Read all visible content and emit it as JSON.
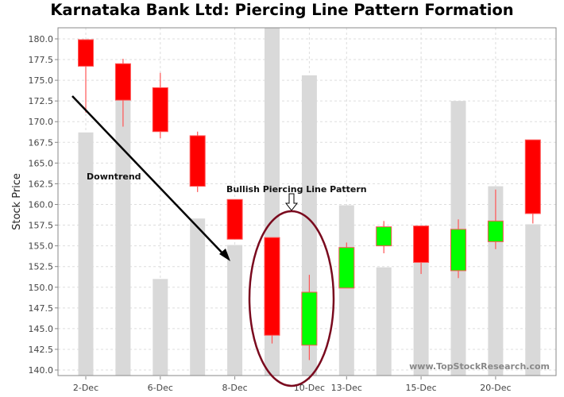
{
  "chart_data": {
    "type": "candlestick",
    "title": "Karnataka Bank Ltd: Piercing Line Pattern Formation",
    "xlabel": "",
    "ylabel": "Stock Price",
    "ylim": [
      139.33,
      181.34
    ],
    "yticks": [
      "140.0",
      "142.5",
      "145.0",
      "147.5",
      "150.0",
      "152.5",
      "155.0",
      "157.5",
      "160.0",
      "162.5",
      "165.0",
      "167.5",
      "170.0",
      "172.5",
      "175.0",
      "177.5",
      "180.0"
    ],
    "grid": true,
    "x_labels": [
      "2-Dec",
      "",
      "6-Dec",
      "",
      "8-Dec",
      "",
      "10-Dec",
      "13-Dec",
      "",
      "15-Dec",
      "",
      "20-Dec",
      ""
    ],
    "candles": [
      {
        "open": 179.9,
        "high": 179.9,
        "low": 171.1,
        "close": 176.7
      },
      {
        "open": 177.0,
        "high": 177.6,
        "low": 169.4,
        "close": 172.6
      },
      {
        "open": 174.1,
        "high": 175.9,
        "low": 168.0,
        "close": 168.8
      },
      {
        "open": 168.3,
        "high": 168.8,
        "low": 161.5,
        "close": 162.2
      },
      {
        "open": 160.6,
        "high": 160.6,
        "low": 155.8,
        "close": 155.8
      },
      {
        "open": 156.0,
        "high": 156.0,
        "low": 143.2,
        "close": 144.2
      },
      {
        "open": 143.0,
        "high": 151.5,
        "low": 141.2,
        "close": 149.4
      },
      {
        "open": 149.9,
        "high": 155.4,
        "low": 149.9,
        "close": 154.8
      },
      {
        "open": 155.0,
        "high": 158.0,
        "low": 154.1,
        "close": 157.3
      },
      {
        "open": 157.4,
        "high": 157.4,
        "low": 151.6,
        "close": 153.0
      },
      {
        "open": 152.0,
        "high": 158.2,
        "low": 151.1,
        "close": 157.0
      },
      {
        "open": 155.5,
        "high": 161.8,
        "low": 154.6,
        "close": 158.0
      },
      {
        "open": 167.8,
        "high": 167.8,
        "low": 157.7,
        "close": 158.9
      }
    ],
    "volume_scaled": [
      168.7,
      172.6,
      151.0,
      158.3,
      155.1,
      183.0,
      175.6,
      159.9,
      152.4,
      156.5,
      172.5,
      162.2,
      157.6
    ],
    "annotations": {
      "downtrend": "Downtrend",
      "pattern": "Bullish Piercing Line Pattern",
      "watermark": "www.TopStockResearch.com"
    },
    "colors": {
      "up": "#00ff00",
      "down": "#ff0000",
      "wick": "#ff5555",
      "volume": "#d9d9d9",
      "ellipse": "#7a0a1e"
    }
  }
}
